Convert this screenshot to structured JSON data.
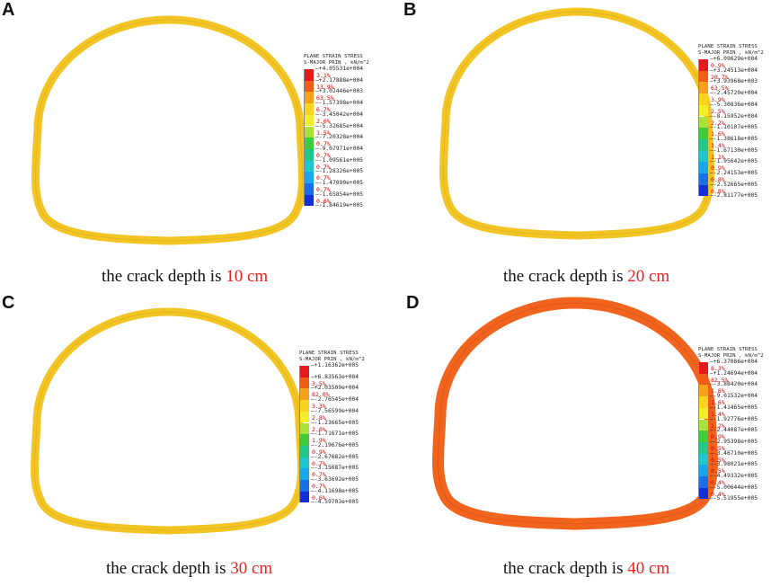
{
  "legend_header": {
    "line1": "PLANE STRAIN STRESS",
    "line2": "S-MAJOR PRIN , kN/m^2"
  },
  "caption_prefix": "the crack depth is",
  "scale_colors": [
    "#e41a1c",
    "#f25c19",
    "#f7a01c",
    "#f9d41f",
    "#f0ef2a",
    "#a9e23a",
    "#3fcc3c",
    "#1fc88a",
    "#1fc6d0",
    "#18a7ee",
    "#1a6fe6",
    "#1330d8"
  ],
  "panels": [
    {
      "letter": "A",
      "crack_depth": "10 cm",
      "ring_color": "#f2c524",
      "ring_edge": "#d9a51a",
      "values": [
        "+4.05531e+004",
        "+2.17888e+004",
        "+3.02446e+003",
        "-1.57398e+004",
        "-3.45042e+004",
        "-5.32685e+004",
        "-7.20328e+004",
        "-9.07971e+004",
        "-1.09561e+005",
        "-1.28326e+005",
        "-1.47090e+005",
        "-1.65854e+005",
        "-1.84619e+005"
      ],
      "percents": [
        "3.1%",
        "13.9%",
        "63.5%",
        "6.7%",
        "2.0%",
        "1.5%",
        "0.7%",
        "0.7%",
        "0.7%",
        "0.7%",
        "0.7%",
        "0.6%"
      ]
    },
    {
      "letter": "B",
      "crack_depth": "20 cm",
      "ring_color": "#f2c524",
      "ring_edge": "#d9a51a",
      "values": [
        "+6.09629e+004",
        "+3.24513e+004",
        "+3.93968e+003",
        "-2.45720e+004",
        "-5.30836e+004",
        "-8.15952e+004",
        "-1.10107e+005",
        "-1.38618e+005",
        "-1.67130e+005",
        "-1.95642e+005",
        "-2.24153e+005",
        "-2.52665e+005",
        "-2.81177e+005"
      ],
      "percents": [
        "0.9%",
        "20.7%",
        "63.5%",
        "3.9%",
        "2.5%",
        "2.2%",
        "1.6%",
        "1.4%",
        "1.1%",
        "0.9%",
        "0.8%",
        "0.8%"
      ]
    },
    {
      "letter": "C",
      "crack_depth": "30 cm",
      "ring_color": "#f2c524",
      "ring_edge": "#d9a51a",
      "values": [
        "+1.16362e+005",
        "+6.83563e+004",
        "+2.03509e+004",
        "-2.76545e+004",
        "-7.56599e+004",
        "-1.23665e+005",
        "-1.71671e+005",
        "-2.19676e+005",
        "-2.67682e+005",
        "-3.15687e+005",
        "-3.63692e+005",
        "-4.11698e+005",
        "-4.59703e+005"
      ],
      "percents": [
        "",
        "3.5%",
        "82.0%",
        "3.3%",
        "2.8%",
        "2.0%",
        "1.9%",
        "0.9%",
        "0.7%",
        "0.7%",
        "0.7%",
        "0.6%"
      ]
    },
    {
      "letter": "D",
      "crack_depth": "40 cm",
      "ring_color": "#f0641e",
      "ring_edge": "#d34a12",
      "values": [
        "+6.37086e+004",
        "+1.24694e+004",
        "-3.88420e+004",
        "-9.01532e+004",
        "-1.41465e+005",
        "-1.92776e+005",
        "-2.44087e+005",
        "-2.95398e+005",
        "-3.46710e+005",
        "-3.98021e+005",
        "-4.49332e+005",
        "-5.00644e+005",
        "-5.51955e+005"
      ],
      "percents": [
        "8.3%",
        "82.5%",
        "1.8%",
        "1.6%",
        "1.4%",
        "1.2%",
        "0.9%",
        "0.5%",
        "0.5%",
        "0.5%",
        "0.4%",
        "0.4%"
      ]
    }
  ]
}
